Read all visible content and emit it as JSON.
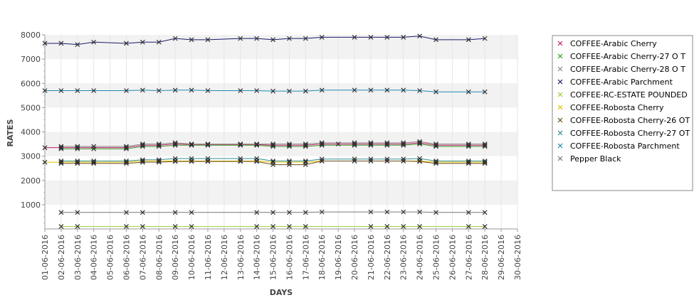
{
  "chart_data": {
    "type": "line",
    "title": "",
    "xlabel": "DAYS",
    "ylabel": "RATES",
    "ylim": [
      0,
      8000
    ],
    "yticks": [
      "1000",
      "2000",
      "3000",
      "4000",
      "5000",
      "6000",
      "7000",
      "8000"
    ],
    "grid": true,
    "legend_position": "right",
    "categories": [
      "01-06-2016",
      "02-06-2016",
      "03-06-2016",
      "04-06-2016",
      "05-06-2016",
      "06-06-2016",
      "07-06-2016",
      "08-06-2016",
      "09-06-2016",
      "10-06-2016",
      "11-06-2016",
      "12-06-2016",
      "13-06-2016",
      "14-06-2016",
      "15-06-2016",
      "16-06-2016",
      "17-06-2016",
      "18-06-2016",
      "19-06-2016",
      "20-06-2016",
      "21-06-2016",
      "22-06-2016",
      "23-06-2016",
      "24-06-2016",
      "25-06-2016",
      "26-06-2016",
      "27-06-2016",
      "28-06-2016",
      "29-06-2016",
      "30-06-2016"
    ],
    "series": [
      {
        "name": "COFFEE-Arabic Cherry",
        "color": "#c21f6b",
        "values": [
          3350,
          3350,
          3350,
          null,
          null,
          3350,
          3450,
          3450,
          3500,
          3480,
          3480,
          null,
          3480,
          3480,
          3450,
          3450,
          3450,
          3500,
          3500,
          3500,
          3500,
          3500,
          3500,
          3550,
          3450,
          null,
          3450,
          3450,
          null,
          null
        ]
      },
      {
        "name": "COFFEE-Arabic Cherry-27 O T",
        "color": "#3a9a23",
        "values": [
          null,
          3300,
          3300,
          3300,
          null,
          3300,
          3400,
          3400,
          3450,
          3450,
          3450,
          null,
          3450,
          3450,
          3400,
          3400,
          3400,
          3450,
          null,
          3450,
          3450,
          3450,
          3450,
          3500,
          3400,
          null,
          3400,
          3400,
          null,
          null
        ]
      },
      {
        "name": "COFFEE-Arabic Cherry-28 O T",
        "color": "#888888",
        "values": [
          null,
          3400,
          3400,
          3400,
          null,
          3400,
          3500,
          3500,
          3550,
          3500,
          3500,
          null,
          3500,
          3500,
          3500,
          3500,
          3500,
          3550,
          null,
          3550,
          3550,
          3550,
          3550,
          3600,
          3500,
          null,
          3500,
          3500,
          null,
          null
        ]
      },
      {
        "name": "COFFEE-Arabic Parchment",
        "color": "#1a1a6e",
        "values": [
          7650,
          7650,
          7600,
          7700,
          null,
          7650,
          7700,
          7700,
          7850,
          7800,
          7800,
          null,
          7850,
          7850,
          7800,
          7850,
          7850,
          7900,
          null,
          7900,
          7900,
          7900,
          7900,
          7950,
          7800,
          null,
          7800,
          7850,
          null,
          null
        ]
      },
      {
        "name": "COFFEE-RC-ESTATE POUNDED",
        "color": "#9acd32",
        "values": [
          null,
          100,
          100,
          null,
          null,
          100,
          100,
          null,
          100,
          100,
          null,
          null,
          null,
          100,
          100,
          100,
          100,
          null,
          null,
          null,
          100,
          100,
          100,
          100,
          null,
          null,
          100,
          100,
          null,
          null
        ]
      },
      {
        "name": "COFFEE-Robosta Cherry",
        "color": "#e6c200",
        "values": [
          2750,
          2750,
          2750,
          2750,
          null,
          2750,
          2800,
          2800,
          2800,
          2800,
          2800,
          null,
          2800,
          2800,
          2750,
          2750,
          2750,
          2800,
          null,
          2800,
          2800,
          2800,
          2800,
          2800,
          2750,
          null,
          2750,
          2750,
          null,
          null
        ]
      },
      {
        "name": "COFFEE-Robosta Cherry-26 OT",
        "color": "#6b4a1a",
        "values": [
          null,
          2700,
          2700,
          2700,
          null,
          2700,
          2750,
          2750,
          2780,
          2780,
          2780,
          null,
          2780,
          2780,
          2650,
          2650,
          2650,
          2800,
          null,
          2800,
          2800,
          2800,
          2800,
          2780,
          2700,
          null,
          2700,
          2700,
          null,
          null
        ]
      },
      {
        "name": "COFFEE-Robosta Cherry-27 OT",
        "color": "#2e8b8b",
        "values": [
          null,
          2800,
          2800,
          2800,
          null,
          2800,
          2850,
          2850,
          2900,
          2900,
          2900,
          null,
          2900,
          2900,
          2800,
          2800,
          2800,
          2880,
          null,
          2880,
          2880,
          2880,
          2880,
          2900,
          2800,
          null,
          2800,
          2800,
          null,
          null
        ]
      },
      {
        "name": "COFFEE-Robosta Parchment",
        "color": "#1e8ab4",
        "values": [
          5700,
          5700,
          5700,
          5700,
          null,
          5700,
          5720,
          5700,
          5720,
          5720,
          5700,
          null,
          5700,
          5700,
          5680,
          5680,
          5680,
          5720,
          null,
          5720,
          5720,
          5720,
          5720,
          5700,
          5650,
          null,
          5650,
          5650,
          null,
          null
        ]
      },
      {
        "name": "Pepper Black",
        "color": "#777777",
        "values": [
          null,
          680,
          680,
          null,
          null,
          680,
          680,
          null,
          680,
          680,
          null,
          null,
          null,
          680,
          680,
          680,
          680,
          700,
          null,
          null,
          700,
          700,
          700,
          700,
          680,
          null,
          680,
          680,
          null,
          null
        ]
      }
    ]
  }
}
